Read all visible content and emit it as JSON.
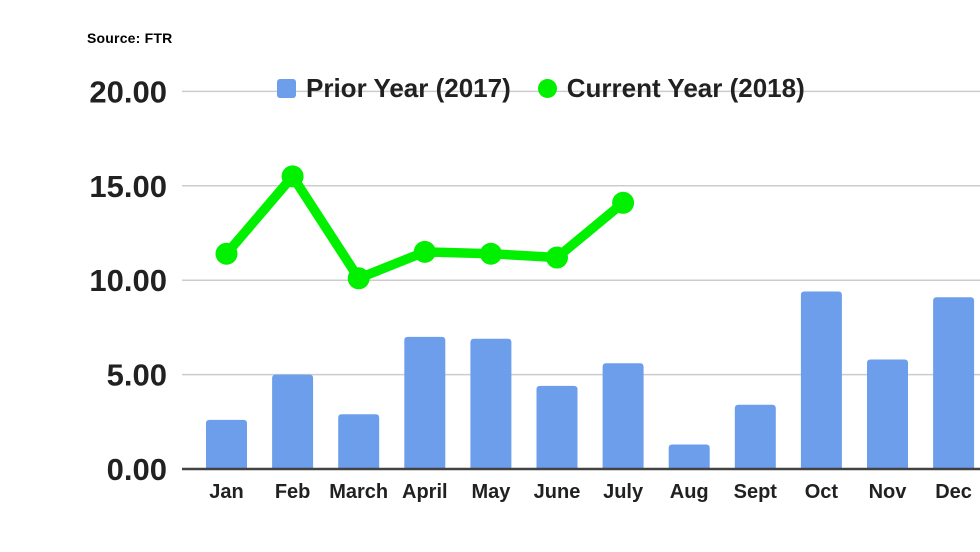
{
  "source_label": "Source: FTR",
  "legend": {
    "prior_label": "Prior Year (2017)",
    "current_label": "Current Year (2018)"
  },
  "colors": {
    "bar_blue": "#6d9eeb",
    "line_green": "#00f000",
    "grid": "#cccccc",
    "axis": "#424242",
    "text": "#212121"
  },
  "chart_data": {
    "type": "bar",
    "subtype": "combo-bar-line",
    "categories": [
      "Jan",
      "Feb",
      "March",
      "April",
      "May",
      "June",
      "July",
      "Aug",
      "Sept",
      "Oct",
      "Nov",
      "Dec"
    ],
    "series": [
      {
        "name": "Prior Year (2017)",
        "kind": "bar",
        "color": "#6d9eeb",
        "values": [
          2.6,
          5.0,
          2.9,
          7.0,
          6.9,
          4.4,
          5.6,
          1.3,
          3.4,
          9.4,
          5.8,
          9.1
        ]
      },
      {
        "name": "Current Year (2018)",
        "kind": "line",
        "color": "#00f000",
        "values": [
          11.4,
          15.5,
          10.1,
          11.5,
          11.4,
          11.2,
          14.1,
          null,
          null,
          null,
          null,
          null
        ]
      }
    ],
    "ylim": [
      0,
      20
    ],
    "ytick_values": [
      0,
      5,
      10,
      15,
      20
    ],
    "yticks": [
      "0.00",
      "5.00",
      "10.00",
      "15.00",
      "20.00"
    ],
    "xlabel": "",
    "ylabel": "",
    "grid": true,
    "legend_position": "top",
    "source": "Source: FTR"
  }
}
